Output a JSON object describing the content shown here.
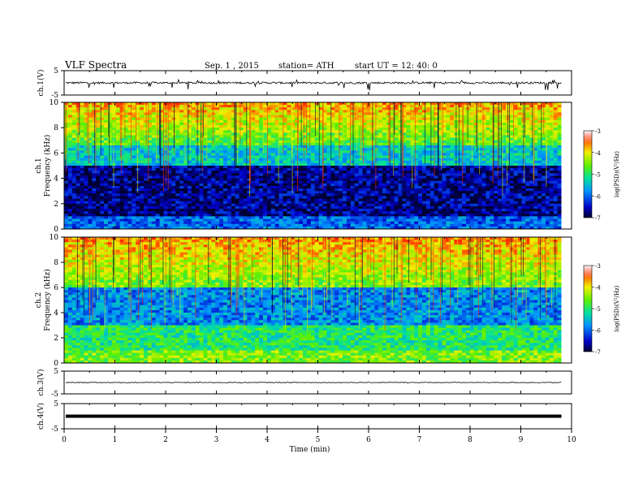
{
  "header": {
    "title": "VLF Spectra",
    "date": "Sep. 1 , 2015",
    "station": "station= ATH",
    "start": "start UT = 12: 40: 0"
  },
  "chart_data": [
    {
      "type": "line",
      "name": "ch1-waveform",
      "ylabel": "ch.1(V)",
      "ylim": [
        -5,
        5
      ],
      "yticks": [
        5,
        -5
      ]
    },
    {
      "type": "heatmap",
      "name": "ch1-spectrogram",
      "ylabel": "ch.1 Frequency (kHz)",
      "ylim": [
        0,
        10
      ],
      "yticks": [
        0,
        2,
        4,
        6,
        8,
        10
      ],
      "colorbar": {
        "label": "log(PSD)(V²/Hz)",
        "range": [
          -7,
          -3
        ],
        "ticks": [
          -3,
          -4,
          -5,
          -6,
          -7
        ]
      }
    },
    {
      "type": "heatmap",
      "name": "ch2-spectrogram",
      "ylabel": "ch.2 Frequency (kHz)",
      "ylim": [
        0,
        10
      ],
      "yticks": [
        0,
        2,
        4,
        6,
        8,
        10
      ],
      "colorbar": {
        "label": "log(PSD)(V²/Hz)",
        "range": [
          -7,
          -3
        ],
        "ticks": [
          -3,
          -4,
          -5,
          -6,
          -7
        ]
      }
    },
    {
      "type": "line",
      "name": "ch3-waveform",
      "ylabel": "ch.3(V)",
      "ylim": [
        -5,
        5
      ],
      "yticks": [
        5,
        -5
      ]
    },
    {
      "type": "line",
      "name": "ch4-waveform",
      "ylabel": "ch.4(V)",
      "ylim": [
        -5,
        5
      ],
      "yticks": [
        5,
        -5
      ]
    }
  ],
  "x_axis": {
    "label": "Time (min)",
    "xlim": [
      0,
      10
    ],
    "ticks": [
      0,
      1,
      2,
      3,
      4,
      5,
      6,
      7,
      8,
      9,
      10
    ],
    "data_end": 9.8
  }
}
